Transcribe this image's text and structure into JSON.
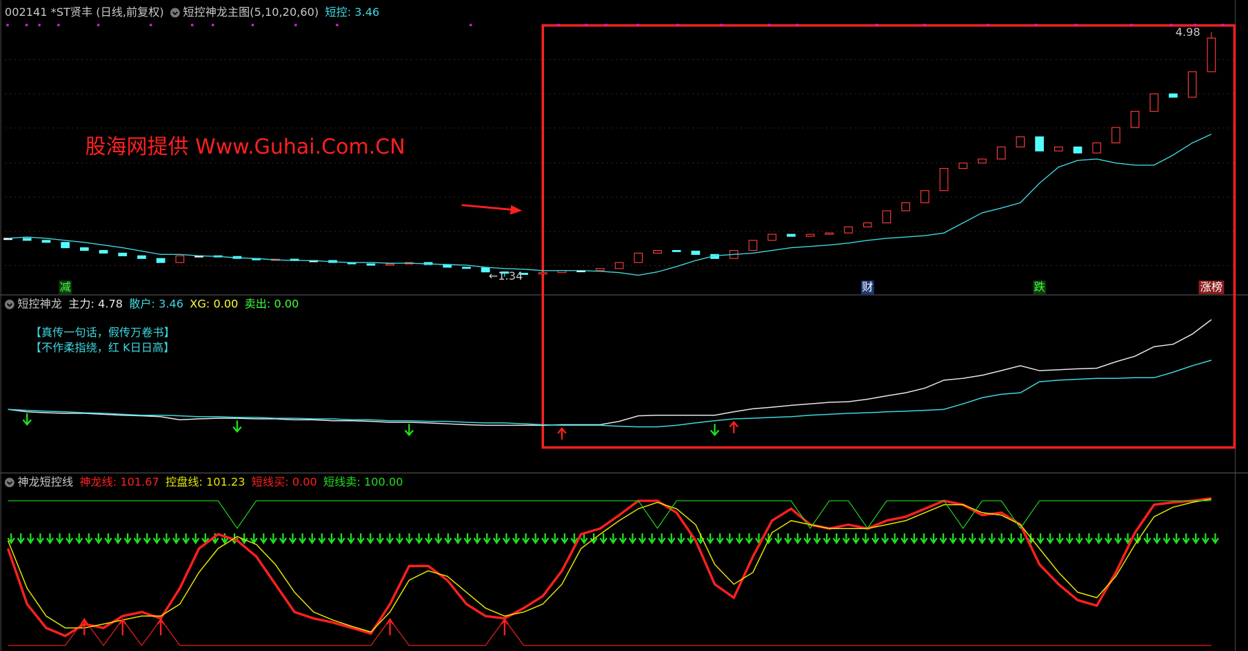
{
  "chart_data": [
    {
      "type": "candlestick",
      "title": "002141 *ST贤丰 (日线,前复权)",
      "indicator": "短控神龙主图(5,10,20,60)",
      "legend": [
        {
          "text": "短控: 3.46",
          "color": "#3fd8e0"
        }
      ],
      "watermark": "股海网提供 Www.Guhai.Com.CN",
      "closes": [
        1.91,
        1.88,
        1.85,
        1.77,
        1.73,
        1.69,
        1.65,
        1.61,
        1.55,
        1.65,
        1.65,
        1.64,
        1.61,
        1.59,
        1.6,
        1.58,
        1.58,
        1.55,
        1.53,
        1.51,
        1.53,
        1.55,
        1.52,
        1.48,
        1.47,
        1.41,
        1.39,
        1.38,
        1.4,
        1.43,
        1.43,
        1.46,
        1.55,
        1.69,
        1.73,
        1.72,
        1.67,
        1.61,
        1.73,
        1.88,
        1.97,
        1.94,
        1.97,
        1.99,
        2.08,
        2.14,
        2.32,
        2.44,
        2.62,
        2.95,
        3.03,
        3.09,
        3.27,
        3.42,
        3.21,
        3.27,
        3.18,
        3.33,
        3.56,
        3.8,
        4.06,
        4.01,
        4.39,
        4.89
      ],
      "ma": {
        "color": "#3fd8e0",
        "values": [
          1.91,
          1.93,
          1.91,
          1.88,
          1.85,
          1.81,
          1.77,
          1.72,
          1.67,
          1.67,
          1.65,
          1.64,
          1.62,
          1.61,
          1.59,
          1.58,
          1.58,
          1.56,
          1.55,
          1.55,
          1.54,
          1.54,
          1.53,
          1.52,
          1.51,
          1.48,
          1.46,
          1.45,
          1.43,
          1.43,
          1.43,
          1.42,
          1.4,
          1.36,
          1.41,
          1.49,
          1.58,
          1.65,
          1.67,
          1.69,
          1.73,
          1.77,
          1.79,
          1.81,
          1.84,
          1.88,
          1.91,
          1.93,
          1.95,
          1.99,
          2.14,
          2.29,
          2.36,
          2.44,
          2.73,
          2.97,
          3.07,
          3.09,
          3.03,
          3.0,
          3.0,
          3.15,
          3.33,
          3.46
        ]
      },
      "up_color": "#ff3c3c",
      "down_color": "#54ffff",
      "high": {
        "value": 4.98,
        "label": "4.98",
        "index": 63
      },
      "low": {
        "value": 1.34,
        "label": "←1.34",
        "index": 26
      },
      "markers": [
        {
          "text": "减",
          "index": 3,
          "color": "#3cff3c",
          "bg": "#103a10"
        },
        {
          "text": "财",
          "index": 45,
          "color": "#ffffff",
          "bg": "#1f3a78"
        },
        {
          "text": "跌",
          "index": 54,
          "color": "#3cff3c",
          "bg": "#103a10"
        },
        {
          "text": "涨榜",
          "index": 63,
          "color": "#ffffff",
          "bg": "#8a1e1e"
        }
      ],
      "ylim": [
        1.08,
        5.22
      ]
    },
    {
      "type": "line",
      "title": "短控神龙",
      "notes": [
        "【真传一句话，假传万卷书】",
        "【不作柔指绕，红 K日日高】"
      ],
      "series": [
        {
          "label": "主力: 4.78",
          "color": "#e8e8e8",
          "values": [
            1.86,
            1.78,
            1.75,
            1.73,
            1.73,
            1.7,
            1.67,
            1.65,
            1.62,
            1.52,
            1.55,
            1.57,
            1.57,
            1.55,
            1.55,
            1.52,
            1.52,
            1.49,
            1.49,
            1.47,
            1.44,
            1.44,
            1.42,
            1.39,
            1.36,
            1.34,
            1.34,
            1.34,
            1.34,
            1.36,
            1.36,
            1.36,
            1.47,
            1.65,
            1.67,
            1.67,
            1.67,
            1.67,
            1.78,
            1.88,
            1.93,
            1.99,
            2.04,
            2.09,
            2.11,
            2.19,
            2.3,
            2.4,
            2.55,
            2.81,
            2.87,
            2.97,
            3.12,
            3.28,
            3.12,
            3.15,
            3.18,
            3.2,
            3.41,
            3.59,
            3.9,
            3.98,
            4.31,
            4.78
          ]
        },
        {
          "label": "散户: 3.46",
          "color": "#3fd8e0",
          "values": [
            1.86,
            1.83,
            1.8,
            1.78,
            1.75,
            1.73,
            1.7,
            1.67,
            1.67,
            1.65,
            1.62,
            1.62,
            1.6,
            1.6,
            1.57,
            1.57,
            1.55,
            1.55,
            1.52,
            1.52,
            1.49,
            1.49,
            1.47,
            1.47,
            1.44,
            1.42,
            1.42,
            1.39,
            1.36,
            1.34,
            1.34,
            1.34,
            1.31,
            1.29,
            1.29,
            1.34,
            1.42,
            1.49,
            1.55,
            1.57,
            1.6,
            1.62,
            1.67,
            1.7,
            1.73,
            1.75,
            1.78,
            1.8,
            1.83,
            1.86,
            2.04,
            2.24,
            2.35,
            2.4,
            2.76,
            2.81,
            2.84,
            2.87,
            2.87,
            2.89,
            2.89,
            3.07,
            3.28,
            3.46
          ]
        }
      ],
      "extra_legend": [
        {
          "text": "XG: 0.00",
          "color": "#ffff3c"
        },
        {
          "text": "卖出: 0.00",
          "color": "#3cff3c"
        }
      ],
      "buy_signals": [
        29,
        38
      ],
      "sell_signals": [
        1,
        12,
        21,
        37
      ],
      "ylim": [
        -0.21,
        5.56
      ]
    },
    {
      "type": "line",
      "title": "神龙短控线",
      "series": [
        {
          "label": "神龙线: 101.67",
          "color": "#ff2020",
          "width": 3,
          "values": [
            67.0,
            28.6,
            12.1,
            6.6,
            14.8,
            12.1,
            20.3,
            23.1,
            18.7,
            39.6,
            67.0,
            76.9,
            72.5,
            61.5,
            42.3,
            23.1,
            18.7,
            15.9,
            12.1,
            8.2,
            28.6,
            54.9,
            54.9,
            45.1,
            28.6,
            20.3,
            18.7,
            25.8,
            34.1,
            51.6,
            76.9,
            80.8,
            90.1,
            100.0,
            100.0,
            91.8,
            72.5,
            42.3,
            33.0,
            61.5,
            86.3,
            94.5,
            83.5,
            80.8,
            83.5,
            80.8,
            86.3,
            89.0,
            94.5,
            100.0,
            97.3,
            90.1,
            91.8,
            83.5,
            56.0,
            42.3,
            31.3,
            27.5,
            50.5,
            78.0,
            97.3,
            98.9,
            100.0,
            101.67
          ]
        },
        {
          "label": "控盘线: 101.23",
          "color": "#e6e600",
          "width": 1.3,
          "values": [
            72.5,
            39.6,
            20.3,
            12.1,
            12.1,
            14.8,
            17.6,
            20.3,
            20.3,
            28.6,
            50.5,
            67.0,
            75.3,
            69.8,
            56.0,
            36.8,
            23.1,
            17.6,
            13.2,
            9.3,
            23.1,
            45.1,
            51.6,
            47.8,
            36.8,
            25.8,
            20.3,
            23.1,
            28.6,
            42.3,
            67.0,
            76.9,
            86.3,
            94.5,
            98.9,
            94.5,
            83.5,
            56.0,
            42.3,
            50.5,
            78.0,
            86.3,
            83.5,
            80.8,
            80.8,
            80.8,
            83.5,
            86.3,
            91.8,
            97.3,
            97.3,
            91.8,
            90.1,
            83.5,
            67.0,
            50.5,
            36.8,
            33.0,
            47.8,
            69.8,
            89.0,
            95.6,
            98.9,
            101.23
          ]
        },
        {
          "label": "短线买: 0.00",
          "color": "#ff2020",
          "width": 1,
          "values": [
            0,
            0,
            0,
            0,
            18,
            0,
            18,
            0,
            18,
            0,
            0,
            0,
            0,
            0,
            0,
            0,
            0,
            0,
            0,
            0,
            18,
            0,
            0,
            0,
            0,
            0,
            18,
            0,
            0,
            0,
            0,
            0,
            0,
            0,
            0,
            0,
            0,
            0,
            0,
            0,
            0,
            0,
            0,
            0,
            0,
            0,
            0,
            0,
            0,
            0,
            0,
            0,
            0,
            0,
            0,
            0,
            0,
            0,
            0,
            0,
            0,
            0,
            0,
            0
          ]
        },
        {
          "label": "短线卖: 100.00",
          "color": "#20e020",
          "width": 1,
          "values": [
            100,
            100,
            100,
            100,
            100,
            100,
            100,
            100,
            100,
            100,
            100,
            100,
            81,
            100,
            100,
            100,
            100,
            100,
            100,
            100,
            100,
            100,
            100,
            100,
            100,
            100,
            100,
            100,
            100,
            100,
            100,
            100,
            100,
            100,
            81,
            100,
            100,
            100,
            100,
            100,
            100,
            100,
            81,
            100,
            100,
            81,
            100,
            100,
            100,
            100,
            81,
            100,
            100,
            81,
            100,
            100,
            100,
            100,
            100,
            100,
            100,
            100,
            100,
            100
          ]
        }
      ],
      "ylim": [
        -3.85,
        118.7
      ]
    }
  ]
}
